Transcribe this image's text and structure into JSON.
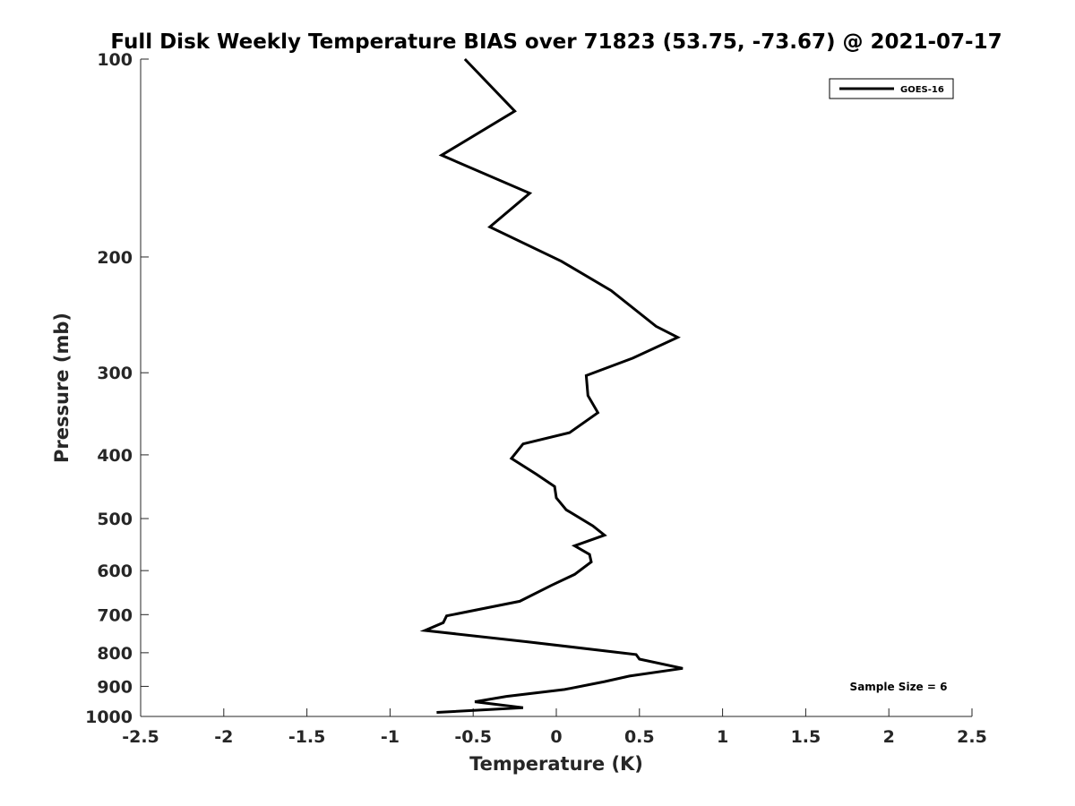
{
  "chart_data": {
    "type": "line",
    "title": "Full Disk Weekly Temperature BIAS over 71823 (53.75, -73.67) @ 2021-07-17",
    "xlabel": "Temperature (K)",
    "ylabel": "Pressure (mb)",
    "xlim": [
      -2.5,
      2.5
    ],
    "ylim": [
      100,
      1000
    ],
    "y_scale": "log",
    "y_reversed": true,
    "grid": false,
    "x_ticks": [
      "-2.5",
      "-2",
      "-1.5",
      "-1",
      "-0.5",
      "0",
      "0.5",
      "1",
      "1.5",
      "2",
      "2.5"
    ],
    "y_ticks": [
      "100",
      "200",
      "300",
      "400",
      "500",
      "600",
      "700",
      "800",
      "900",
      "1000"
    ],
    "legend": {
      "position": "top-right",
      "entries": [
        "GOES-16"
      ]
    },
    "annotation": "Sample Size = 6",
    "series": [
      {
        "name": "GOES-16",
        "color": "#000000",
        "points": [
          [
            -0.55,
            100
          ],
          [
            -0.25,
            120
          ],
          [
            -0.69,
            140
          ],
          [
            -0.16,
            160
          ],
          [
            -0.4,
            180
          ],
          [
            0.03,
            203
          ],
          [
            0.33,
            225
          ],
          [
            0.6,
            255
          ],
          [
            0.73,
            265
          ],
          [
            0.46,
            285
          ],
          [
            0.18,
            303
          ],
          [
            0.19,
            325
          ],
          [
            0.25,
            345
          ],
          [
            0.08,
            370
          ],
          [
            -0.2,
            385
          ],
          [
            -0.27,
            405
          ],
          [
            -0.12,
            428
          ],
          [
            -0.01,
            447
          ],
          [
            0.0,
            465
          ],
          [
            0.06,
            485
          ],
          [
            0.22,
            513
          ],
          [
            0.29,
            530
          ],
          [
            0.11,
            550
          ],
          [
            0.2,
            567
          ],
          [
            0.21,
            582
          ],
          [
            0.11,
            608
          ],
          [
            -0.03,
            632
          ],
          [
            -0.22,
            668
          ],
          [
            -0.66,
            703
          ],
          [
            -0.68,
            720
          ],
          [
            -0.79,
            740
          ],
          [
            -0.17,
            770
          ],
          [
            0.48,
            805
          ],
          [
            0.5,
            818
          ],
          [
            0.76,
            845
          ],
          [
            0.44,
            868
          ],
          [
            0.29,
            885
          ],
          [
            0.05,
            910
          ],
          [
            -0.3,
            932
          ],
          [
            -0.49,
            950
          ],
          [
            -0.2,
            970
          ],
          [
            -0.72,
            986
          ]
        ]
      }
    ]
  }
}
